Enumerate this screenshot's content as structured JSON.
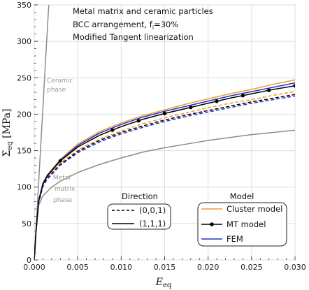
{
  "chart_data": {
    "type": "line",
    "xlim": [
      0,
      0.03
    ],
    "ylim": [
      0,
      350
    ],
    "xticks": [
      "0.000",
      "0.005",
      "0.010",
      "0.015",
      "0.020",
      "0.025",
      "0.030"
    ],
    "yticks": [
      "0",
      "50",
      "100",
      "150",
      "200",
      "250",
      "300",
      "350"
    ],
    "xticks_values": [
      0,
      0.005,
      0.01,
      0.015,
      0.02,
      0.025,
      0.03
    ],
    "yticks_values": [
      0,
      50,
      100,
      150,
      200,
      250,
      300,
      350
    ],
    "grid": true,
    "xlabel_main": "E",
    "xlabel_sub": "eq",
    "ylabel_main": "Σ",
    "ylabel_sub": "eq",
    "ylabel_unit": " [MPa]",
    "annotations": {
      "line1": "Metal matrix and ceramic particles",
      "line2_prefix": "BCC arrangement, f",
      "line2_sub": "i",
      "line2_suffix": "=30%",
      "line3": "Modified Tangent linearization"
    },
    "phase_labels": {
      "ceramic_line1": "Ceramic",
      "ceramic_line2": "phase",
      "metal_line1": "Metal",
      "metal_line2": "matrix",
      "metal_line3": "phase"
    },
    "legend_direction": {
      "title": "Direction",
      "entries": [
        "(0,0,1)",
        "(1,1,1)"
      ]
    },
    "legend_model": {
      "title": "Model",
      "entries": [
        "Cluster model",
        "MT model",
        "FEM"
      ]
    },
    "colors": {
      "cluster": "#f39c2b",
      "mt": "#000000",
      "fem": "#2233cc",
      "phase": "#8c8c8c"
    },
    "series": [
      {
        "model": "Cluster model",
        "direction": "(1,1,1)",
        "dash": false,
        "color": "#f39c2b",
        "x": [
          0,
          0.0002,
          0.0005,
          0.001,
          0.0015,
          0.002,
          0.003,
          0.005,
          0.0075,
          0.01,
          0.0125,
          0.015,
          0.0175,
          0.02,
          0.0225,
          0.025,
          0.0275,
          0.03
        ],
        "y": [
          0,
          40,
          82,
          106,
          117,
          124,
          138,
          159,
          176,
          188,
          198,
          206,
          214,
          221,
          228,
          234,
          241,
          247
        ]
      },
      {
        "model": "MT model",
        "direction": "(1,1,1)",
        "dash": false,
        "color": "#000000",
        "markers": true,
        "x": [
          0,
          0.0002,
          0.0005,
          0.001,
          0.0015,
          0.002,
          0.003,
          0.005,
          0.0075,
          0.01,
          0.0125,
          0.015,
          0.0175,
          0.02,
          0.0225,
          0.025,
          0.0275,
          0.03
        ],
        "y": [
          0,
          39,
          80,
          104,
          115,
          122,
          136,
          155,
          171,
          183,
          193,
          201,
          208,
          215,
          222,
          228,
          234,
          239
        ]
      },
      {
        "model": "FEM",
        "direction": "(1,1,1)",
        "dash": false,
        "color": "#2233cc",
        "x": [
          0,
          0.0002,
          0.0005,
          0.001,
          0.0015,
          0.002,
          0.003,
          0.005,
          0.0075,
          0.01,
          0.0125,
          0.015,
          0.0175,
          0.02,
          0.0225,
          0.025,
          0.0275,
          0.03
        ],
        "y": [
          0,
          40,
          81,
          105,
          116,
          123,
          137,
          157,
          174,
          186,
          196,
          204,
          211,
          218,
          225,
          231,
          237,
          243
        ]
      },
      {
        "model": "Cluster model",
        "direction": "(0,0,1)",
        "dash": true,
        "color": "#f39c2b",
        "x": [
          0,
          0.0002,
          0.0005,
          0.001,
          0.0015,
          0.002,
          0.003,
          0.005,
          0.0075,
          0.01,
          0.0125,
          0.015,
          0.0175,
          0.02,
          0.0225,
          0.025,
          0.0275,
          0.03
        ],
        "y": [
          0,
          39,
          80,
          103,
          114,
          120,
          133,
          151,
          166,
          177,
          187,
          195,
          202,
          209,
          215,
          220,
          226,
          231
        ]
      },
      {
        "model": "MT model",
        "direction": "(0,0,1)",
        "dash": true,
        "color": "#000000",
        "x": [
          0,
          0.0002,
          0.0005,
          0.001,
          0.0015,
          0.002,
          0.003,
          0.005,
          0.0075,
          0.01,
          0.0125,
          0.015,
          0.0175,
          0.02,
          0.0225,
          0.025,
          0.0275,
          0.03
        ],
        "y": [
          0,
          39,
          79,
          102,
          112,
          118,
          131,
          149,
          164,
          175,
          184,
          192,
          199,
          205,
          211,
          217,
          222,
          227
        ]
      },
      {
        "model": "FEM",
        "direction": "(0,0,1)",
        "dash": true,
        "color": "#2233cc",
        "x": [
          0,
          0.0002,
          0.0005,
          0.001,
          0.0015,
          0.002,
          0.003,
          0.005,
          0.0075,
          0.01,
          0.0125,
          0.015,
          0.0175,
          0.02,
          0.0225,
          0.025,
          0.0275,
          0.03
        ],
        "y": [
          0,
          38,
          78,
          101,
          111,
          117,
          130,
          147,
          162,
          173,
          182,
          190,
          197,
          203,
          209,
          215,
          220,
          225
        ]
      },
      {
        "model": "Metal matrix phase",
        "dash": false,
        "color": "#8c8c8c",
        "x": [
          0,
          0.0002,
          0.0005,
          0.001,
          0.002,
          0.003,
          0.005,
          0.0075,
          0.01,
          0.0125,
          0.015,
          0.0175,
          0.02,
          0.0225,
          0.025,
          0.0275,
          0.03
        ],
        "y": [
          0,
          38,
          75,
          88,
          100,
          108,
          120,
          131,
          140,
          148,
          154,
          159,
          164,
          168,
          172,
          175,
          178
        ]
      },
      {
        "model": "Ceramic phase",
        "dash": false,
        "color": "#8c8c8c",
        "x": [
          0,
          0.0005,
          0.001,
          0.0015,
          0.0017
        ],
        "y": [
          0,
          105,
          210,
          315,
          357
        ]
      }
    ],
    "mt_markers_x": [
      0.003,
      0.009,
      0.012,
      0.015,
      0.018,
      0.021,
      0.024,
      0.027,
      0.03
    ]
  }
}
